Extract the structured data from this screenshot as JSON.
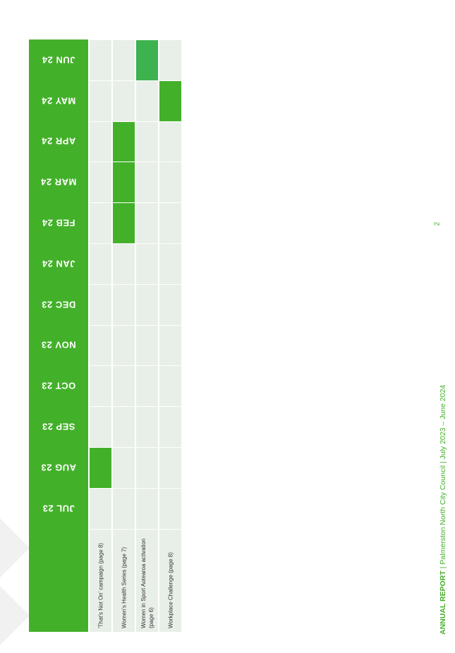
{
  "table": {
    "months": [
      "JUN 24",
      "MAY 24",
      "APR 24",
      "MAR 24",
      "FEB 24",
      "JAN 24",
      "DEC 23",
      "NOV 23",
      "OCT 23",
      "SEP 23",
      "AUG 23",
      "JUL 23"
    ],
    "activities": [
      {
        "label": "'That's Not On' campaign (page 8)",
        "active": [
          "AUG 23"
        ]
      },
      {
        "label": "Women's Health Series (page 7)",
        "active": [
          "FEB 24",
          "MAR 24",
          "APR 24"
        ]
      },
      {
        "label": "Women in Sport Aotearoa activation (page 6)",
        "active": [
          "JUN 24"
        ]
      },
      {
        "label": "Workplace Challenge (page 8)",
        "active": [
          "MAY 24"
        ]
      }
    ]
  },
  "colors": {
    "accent": "#43b02a",
    "cell_bg": "#e8eee8"
  },
  "footer": {
    "report_label": "ANNUAL REPORT",
    "separator": "|",
    "council": "Palmerston North City Council",
    "period": "July 2023 – June 2024"
  },
  "page_number": "2"
}
